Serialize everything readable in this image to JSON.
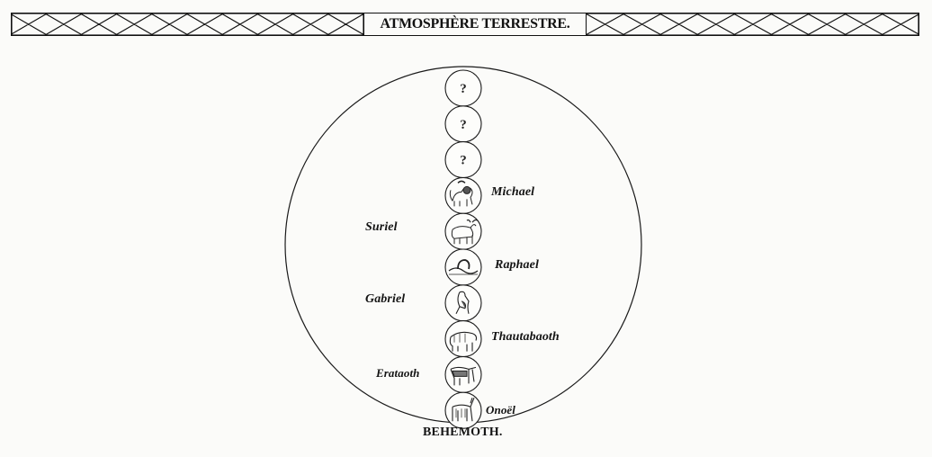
{
  "header": {
    "title": "ATMOSPHÈRE TERRESTRE."
  },
  "circles": [
    {
      "glyph": "?",
      "icon": "question-mark"
    },
    {
      "glyph": "?",
      "icon": "question-mark"
    },
    {
      "glyph": "?",
      "icon": "question-mark"
    },
    {
      "glyph": "",
      "icon": "lion-icon"
    },
    {
      "glyph": "",
      "icon": "bull-icon"
    },
    {
      "glyph": "",
      "icon": "serpent-icon"
    },
    {
      "glyph": "",
      "icon": "eagle-icon"
    },
    {
      "glyph": "",
      "icon": "bear-icon"
    },
    {
      "glyph": "",
      "icon": "dog-icon"
    },
    {
      "glyph": "",
      "icon": "ass-icon"
    }
  ],
  "labels_right": [
    "Michael",
    "Raphael",
    "Thautabaoth",
    "Onoël"
  ],
  "labels_left": [
    "Suriel",
    "Gabriel",
    "Erataoth"
  ],
  "bottom_label": "BEHEMOTH."
}
